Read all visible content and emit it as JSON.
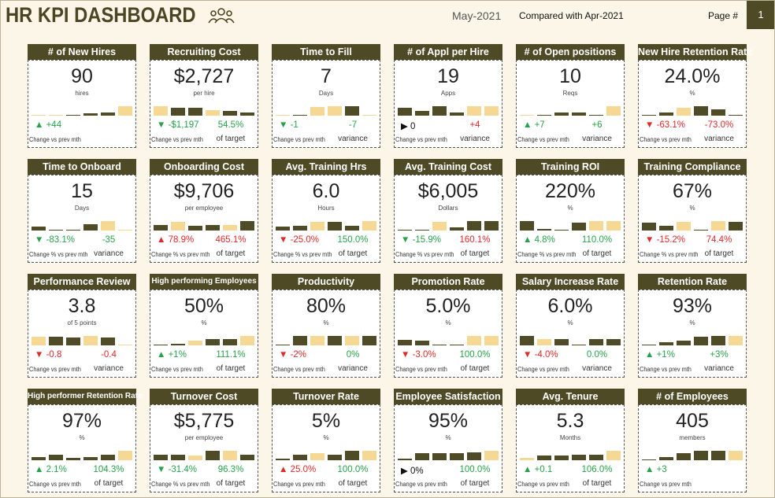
{
  "header": {
    "title": "HR KPI DASHBOARD",
    "period": "May-2021",
    "comparison": "Compared with Apr-2021",
    "page_label": "Page #",
    "page": "1"
  },
  "cards": [
    {
      "title": "# of New Hires",
      "value": "90",
      "unit": "hires",
      "change": "▲ +44",
      "change_color": "#27a24a",
      "change_label": "Change vs prev mth",
      "bars": [
        0.5,
        0.5,
        1,
        2,
        3,
        9
      ],
      "bar_colors": [
        "#f6d895",
        "#f6d895",
        "#4f4b27",
        "#4f4b27",
        "#4f4b27",
        "#f6d895"
      ]
    },
    {
      "title": "Recruiting Cost",
      "value": "$2,727",
      "unit": "per hire",
      "change": "▼ -$1,197",
      "change_color": "#27a24a",
      "change_label": "Change vs prev mth",
      "target": "54.5%",
      "target_color": "#27a24a",
      "target_label": "of target",
      "bars": [
        10,
        8,
        8,
        6,
        5,
        3
      ],
      "bar_colors": [
        "#f6d895",
        "#4f4b27",
        "#4f4b27",
        "#f6d895",
        "#4f4b27",
        "#4f4b27"
      ]
    },
    {
      "title": "Time to Fill",
      "value": "7",
      "unit": "Days",
      "change": "▼ -1",
      "change_color": "#27a24a",
      "change_label": "Change vs prev mth",
      "target": "-7",
      "target_color": "#27a24a",
      "target_label": "variance",
      "bars": [
        0.5,
        1,
        9,
        10,
        10,
        0.5
      ],
      "bar_colors": [
        "#f6d895",
        "#4f4b27",
        "#f6d895",
        "#f6d895",
        "#4f4b27",
        "#f6d895"
      ]
    },
    {
      "title": "# of Appl per Hire",
      "value": "19",
      "unit": "Apps",
      "change": "▶ 0",
      "change_color": "#111111",
      "change_label": "Change vs prev mth",
      "target": "+4",
      "target_color": "#e02a2a",
      "target_label": "variance",
      "bars": [
        8,
        5,
        10,
        3,
        10,
        10
      ],
      "bar_colors": [
        "#4f4b27",
        "#4f4b27",
        "#4f4b27",
        "#4f4b27",
        "#f6d895",
        "#f6d895"
      ]
    },
    {
      "title": "# of Open positions",
      "value": "10",
      "unit": "Reqs",
      "change": "▲ +7",
      "change_color": "#27a24a",
      "change_label": "Change vs prev mth",
      "target": "+6",
      "target_color": "#27a24a",
      "target_label": "variance",
      "bars": [
        0.5,
        1,
        3,
        3,
        1,
        10
      ],
      "bar_colors": [
        "#f6d895",
        "#4f4b27",
        "#4f4b27",
        "#4f4b27",
        "#4f4b27",
        "#f6d895"
      ]
    },
    {
      "title": "New Hire Retention Rate",
      "value": "24.0%",
      "unit": "%",
      "change": "▼ -63.1%",
      "change_color": "#e02a2a",
      "change_label": "Change vs prev mth",
      "target": "-73.0%",
      "target_color": "#e02a2a",
      "target_label": "variance",
      "bars": [
        1,
        3,
        8,
        10,
        7,
        1
      ],
      "bar_colors": [
        "#4f4b27",
        "#4f4b27",
        "#f6d895",
        "#4f4b27",
        "#4f4b27",
        "#4f4b27"
      ]
    },
    {
      "title": "Time to Onboard",
      "value": "15",
      "unit": "Days",
      "change": "▼ -83.1%",
      "change_color": "#27a24a",
      "change_label": "Change % vs prev mth",
      "target": "-35",
      "target_color": "#27a24a",
      "target_label": "variance",
      "bars": [
        4,
        1,
        1,
        7,
        10,
        1
      ],
      "bar_colors": [
        "#4f4b27",
        "#4f4b27",
        "#4f4b27",
        "#4f4b27",
        "#f6d895",
        "#f6d895"
      ]
    },
    {
      "title": "Onboarding Cost",
      "value": "$9,706",
      "unit": "per employee",
      "change": "▲ 78.9%",
      "change_color": "#e02a2a",
      "change_label": "Change % vs prev mth",
      "target": "465.1%",
      "target_color": "#e02a2a",
      "target_label": "of target",
      "bars": [
        6,
        9,
        5,
        6,
        6,
        10
      ],
      "bar_colors": [
        "#4f4b27",
        "#f6d895",
        "#4f4b27",
        "#4f4b27",
        "#f6d895",
        "#4f4b27"
      ]
    },
    {
      "title": "Avg. Training Hrs",
      "value": "6.0",
      "unit": "Hours",
      "change": "▼ -25.0%",
      "change_color": "#e02a2a",
      "change_label": "Change % vs prev mth",
      "target": "150.0%",
      "target_color": "#27a24a",
      "target_label": "of target",
      "bars": [
        4,
        5,
        9,
        9,
        5,
        10
      ],
      "bar_colors": [
        "#4f4b27",
        "#4f4b27",
        "#f6d895",
        "#4f4b27",
        "#4f4b27",
        "#f6d895"
      ]
    },
    {
      "title": "Avg. Training Cost",
      "value": "$6,005",
      "unit": "Dollars",
      "change": "▼ -15.9%",
      "change_color": "#27a24a",
      "change_label": "Change % vs prev mth",
      "target": "160.1%",
      "target_color": "#e02a2a",
      "target_label": "of target",
      "bars": [
        1,
        1,
        9,
        3,
        10,
        10
      ],
      "bar_colors": [
        "#4f4b27",
        "#4f4b27",
        "#f6d895",
        "#4f4b27",
        "#4f4b27",
        "#4f4b27"
      ]
    },
    {
      "title": "Training ROI",
      "value": "220%",
      "unit": "%",
      "change": "▲ 4.8%",
      "change_color": "#27a24a",
      "change_label": "Change % vs prev mth",
      "target": "110.0%",
      "target_color": "#27a24a",
      "target_label": "of target",
      "bars": [
        10,
        2,
        1,
        8,
        10,
        10
      ],
      "bar_colors": [
        "#4f4b27",
        "#4f4b27",
        "#4f4b27",
        "#4f4b27",
        "#f6d895",
        "#f6d895"
      ]
    },
    {
      "title": "Training Compliance",
      "value": "67%",
      "unit": "%",
      "change": "▼ -15.2%",
      "change_color": "#e02a2a",
      "change_label": "Change % vs prev mth",
      "target": "74.4%",
      "target_color": "#e02a2a",
      "target_label": "of target",
      "bars": [
        8,
        5,
        9,
        1,
        10,
        9
      ],
      "bar_colors": [
        "#4f4b27",
        "#4f4b27",
        "#f6d895",
        "#4f4b27",
        "#f6d895",
        "#4f4b27"
      ]
    },
    {
      "title": "Performance Review",
      "value": "3.8",
      "unit": "of 5 points",
      "change": "▼ -0.8",
      "change_color": "#e02a2a",
      "change_label": "Change vs prev mth",
      "target": "-0.4",
      "target_color": "#e02a2a",
      "target_label": "variance",
      "bars": [
        9,
        9,
        8,
        10,
        8,
        1
      ],
      "bar_colors": [
        "#f6d895",
        "#4f4b27",
        "#4f4b27",
        "#f6d895",
        "#4f4b27",
        "#f6d895"
      ]
    },
    {
      "title": "High performing Employees",
      "value": "50%",
      "unit": "%",
      "change": "▲ +1%",
      "change_color": "#27a24a",
      "change_label": "Change vs prev mth",
      "target": "111.1%",
      "target_color": "#27a24a",
      "target_label": "of target",
      "bars": [
        1,
        2,
        5,
        7,
        7,
        10
      ],
      "bar_colors": [
        "#4f4b27",
        "#4f4b27",
        "#f6d895",
        "#4f4b27",
        "#4f4b27",
        "#f6d895"
      ]
    },
    {
      "title": "Productivity",
      "value": "80%",
      "unit": "%",
      "change": "▼ -2%",
      "change_color": "#e02a2a",
      "change_label": "Change vs prev mth",
      "target": "0%",
      "target_color": "#27a24a",
      "target_label": "variance",
      "bars": [
        1,
        10,
        10,
        10,
        10,
        10
      ],
      "bar_colors": [
        "#4f4b27",
        "#4f4b27",
        "#f6d895",
        "#4f4b27",
        "#f6d895",
        "#4f4b27"
      ]
    },
    {
      "title": "Promotion Rate",
      "value": "5.0%",
      "unit": "%",
      "change": "▼ -3.0%",
      "change_color": "#e02a2a",
      "change_label": "Change vs prev mth",
      "target": "100.0%",
      "target_color": "#27a24a",
      "target_label": "of target",
      "bars": [
        6,
        5,
        1,
        1,
        10,
        10
      ],
      "bar_colors": [
        "#4f4b27",
        "#4f4b27",
        "#4f4b27",
        "#4f4b27",
        "#f6d895",
        "#f6d895"
      ]
    },
    {
      "title": "Salary Increase Rate",
      "value": "6.0%",
      "unit": "%",
      "change": "▼ -4.0%",
      "change_color": "#e02a2a",
      "change_label": "Change vs prev mth",
      "target": "0.0%",
      "target_color": "#27a24a",
      "target_label": "variance",
      "bars": [
        9,
        6,
        6,
        1,
        6,
        6
      ],
      "bar_colors": [
        "#4f4b27",
        "#f6d895",
        "#4f4b27",
        "#4f4b27",
        "#4f4b27",
        "#4f4b27"
      ]
    },
    {
      "title": "Retention Rate",
      "value": "93%",
      "unit": "%",
      "change": "▲ +1%",
      "change_color": "#27a24a",
      "change_label": "Change vs prev mth",
      "target": "+3%",
      "target_color": "#27a24a",
      "target_label": "variance",
      "bars": [
        1,
        3,
        5,
        9,
        10,
        10
      ],
      "bar_colors": [
        "#4f4b27",
        "#4f4b27",
        "#4f4b27",
        "#4f4b27",
        "#4f4b27",
        "#f6d895"
      ]
    },
    {
      "title": "High performer Retention Rate",
      "value": "97%",
      "unit": "%",
      "change": "▲ 2.1%",
      "change_color": "#27a24a",
      "change_label": "Change vs prev mth",
      "target": "104.3%",
      "target_color": "#27a24a",
      "target_label": "of target",
      "bars": [
        3,
        5,
        2,
        3,
        5,
        9
      ],
      "bar_colors": [
        "#4f4b27",
        "#4f4b27",
        "#4f4b27",
        "#4f4b27",
        "#4f4b27",
        "#f6d895"
      ]
    },
    {
      "title": "Turnover Cost",
      "value": "$5,775",
      "unit": "per employee",
      "change": "▼ -31.4%",
      "change_color": "#27a24a",
      "change_label": "Change % vs prev mth",
      "target": "96.3%",
      "target_color": "#27a24a",
      "target_label": "of target",
      "bars": [
        5,
        5,
        4,
        8,
        8,
        5
      ],
      "bar_colors": [
        "#4f4b27",
        "#4f4b27",
        "#f6d895",
        "#4f4b27",
        "#f6d895",
        "#4f4b27"
      ]
    },
    {
      "title": "Turnover Rate",
      "value": "5%",
      "unit": "%",
      "change": "▲ 25.0%",
      "change_color": "#e02a2a",
      "change_label": "Change vs prev mth",
      "target": "100.0%",
      "target_color": "#27a24a",
      "target_label": "of target",
      "bars": [
        1,
        4,
        5,
        4,
        7,
        7
      ],
      "bar_colors": [
        "#4f4b27",
        "#4f4b27",
        "#f6d895",
        "#4f4b27",
        "#4f4b27",
        "#f6d895"
      ]
    },
    {
      "title": "Employee Satisfaction",
      "value": "95%",
      "unit": "%",
      "change": "▶ 0%",
      "change_color": "#111111",
      "change_label": "Change vs prev mth",
      "target": "100.0%",
      "target_color": "#27a24a",
      "target_label": "of target",
      "bars": [
        1,
        5,
        5,
        5,
        6,
        7
      ],
      "bar_colors": [
        "#4f4b27",
        "#4f4b27",
        "#4f4b27",
        "#4f4b27",
        "#4f4b27",
        "#f6d895"
      ]
    },
    {
      "title": "Avg. Tenure",
      "value": "5.3",
      "unit": "Months",
      "change": "▲ +0.1",
      "change_color": "#27a24a",
      "change_label": "Change vs prev mth",
      "target": "106.0%",
      "target_color": "#27a24a",
      "target_label": "of target",
      "bars": [
        2,
        4,
        4,
        5,
        5,
        8
      ],
      "bar_colors": [
        "#f6d895",
        "#4f4b27",
        "#4f4b27",
        "#4f4b27",
        "#4f4b27",
        "#f6d895"
      ]
    },
    {
      "title": "# of Employees",
      "value": "405",
      "unit": "members",
      "change": "▲ +3",
      "change_color": "#27a24a",
      "change_label": "Change vs prev mth",
      "bars": [
        1,
        3,
        6,
        8,
        8,
        8
      ],
      "bar_colors": [
        "#4f4b27",
        "#4f4b27",
        "#4f4b27",
        "#4f4b27",
        "#4f4b27",
        "#f6d895"
      ]
    }
  ]
}
